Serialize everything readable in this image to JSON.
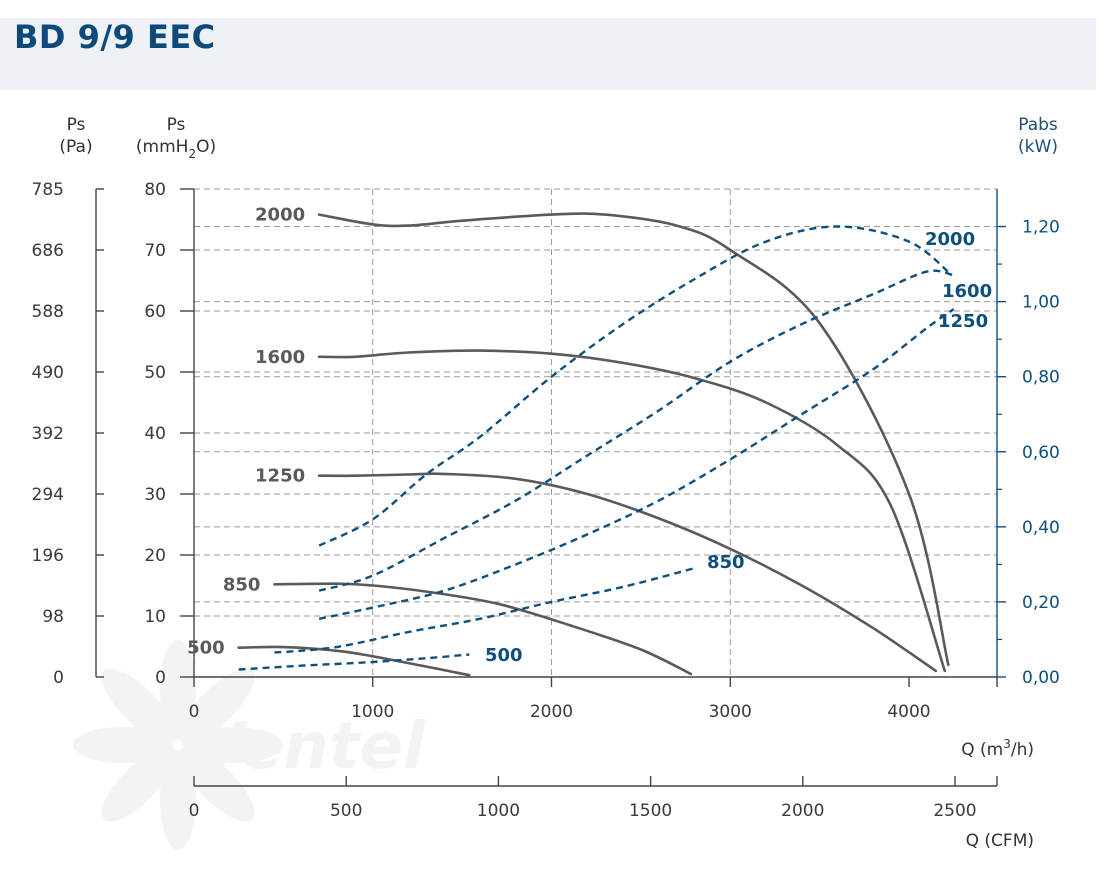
{
  "title": "BD 9/9 EEC",
  "watermark": "Ventel",
  "chart_data": {
    "type": "line",
    "axes": {
      "ps_pa": {
        "label": "Ps",
        "unit": "(Pa)",
        "ticks": [
          "785",
          "686",
          "588",
          "490",
          "392",
          "294",
          "196",
          "98",
          "0"
        ]
      },
      "ps_mm": {
        "label": "Ps",
        "unit_main": "(mmH",
        "unit_sub": "2",
        "unit_end": "O)",
        "ticks": [
          "80",
          "70",
          "60",
          "50",
          "40",
          "30",
          "20",
          "10",
          "0"
        ],
        "range": [
          0,
          80
        ]
      },
      "pabs": {
        "label": "Pabs",
        "unit": "(kW)",
        "ticks": [
          "1,20",
          "1,00",
          "0,80",
          "0,60",
          "0,40",
          "0,20",
          "0,00"
        ],
        "range": [
          0,
          1.3
        ]
      },
      "q_m3h": {
        "label_main": "Q (m",
        "label_sup": "3",
        "label_end": "/h)",
        "ticks": [
          "0",
          "1000",
          "2000",
          "3000",
          "4000"
        ],
        "range": [
          0,
          4500
        ]
      },
      "q_cfm": {
        "label": "Q (CFM)",
        "ticks": [
          "0",
          "500",
          "1000",
          "1500",
          "2000",
          "2500"
        ],
        "range": [
          0,
          2650
        ]
      }
    },
    "grid": true,
    "pressure_series": [
      {
        "name": "2000",
        "points": [
          [
            700,
            75.8
          ],
          [
            1000,
            74.2
          ],
          [
            1200,
            74
          ],
          [
            1500,
            74.8
          ],
          [
            2000,
            75.8
          ],
          [
            2300,
            75.8
          ],
          [
            2700,
            74
          ],
          [
            3000,
            70
          ],
          [
            3500,
            58
          ],
          [
            4000,
            30
          ],
          [
            4220,
            2
          ]
        ]
      },
      {
        "name": "1600",
        "points": [
          [
            700,
            52.5
          ],
          [
            900,
            52.5
          ],
          [
            1200,
            53.2
          ],
          [
            1600,
            53.5
          ],
          [
            2000,
            53
          ],
          [
            2400,
            51.5
          ],
          [
            2800,
            49
          ],
          [
            3200,
            45
          ],
          [
            3600,
            38
          ],
          [
            3900,
            28
          ],
          [
            4200,
            1
          ]
        ]
      },
      {
        "name": "1250",
        "points": [
          [
            700,
            33
          ],
          [
            900,
            33
          ],
          [
            1200,
            33.2
          ],
          [
            1400,
            33.3
          ],
          [
            1800,
            32.5
          ],
          [
            2200,
            30
          ],
          [
            2600,
            26
          ],
          [
            3000,
            21
          ],
          [
            3400,
            15
          ],
          [
            3800,
            8
          ],
          [
            4150,
            1
          ]
        ]
      },
      {
        "name": "850",
        "points": [
          [
            450,
            15.2
          ],
          [
            800,
            15.3
          ],
          [
            1000,
            15
          ],
          [
            1300,
            14
          ],
          [
            1700,
            12
          ],
          [
            2100,
            8.5
          ],
          [
            2500,
            4.5
          ],
          [
            2780,
            0.5
          ]
        ]
      },
      {
        "name": "500",
        "points": [
          [
            250,
            4.8
          ],
          [
            500,
            4.9
          ],
          [
            800,
            4.3
          ],
          [
            1000,
            3.4
          ],
          [
            1300,
            1.7
          ],
          [
            1540,
            0.3
          ]
        ]
      }
    ],
    "power_series": [
      {
        "name": "2000",
        "points": [
          [
            700,
            0.35
          ],
          [
            1000,
            0.42
          ],
          [
            1300,
            0.54
          ],
          [
            1600,
            0.64
          ],
          [
            2000,
            0.8
          ],
          [
            2400,
            0.94
          ],
          [
            2800,
            1.06
          ],
          [
            3200,
            1.16
          ],
          [
            3600,
            1.2
          ],
          [
            4000,
            1.16
          ],
          [
            4240,
            1.07
          ]
        ]
      },
      {
        "name": "1600",
        "points": [
          [
            700,
            0.23
          ],
          [
            1000,
            0.27
          ],
          [
            1400,
            0.37
          ],
          [
            1800,
            0.47
          ],
          [
            2200,
            0.59
          ],
          [
            2600,
            0.71
          ],
          [
            3000,
            0.84
          ],
          [
            3400,
            0.94
          ],
          [
            3800,
            1.02
          ],
          [
            4100,
            1.08
          ],
          [
            4250,
            1.07
          ]
        ]
      },
      {
        "name": "1250",
        "points": [
          [
            700,
            0.155
          ],
          [
            1000,
            0.185
          ],
          [
            1400,
            0.23
          ],
          [
            1800,
            0.3
          ],
          [
            2200,
            0.38
          ],
          [
            2600,
            0.47
          ],
          [
            3000,
            0.58
          ],
          [
            3400,
            0.7
          ],
          [
            3800,
            0.82
          ],
          [
            4100,
            0.93
          ],
          [
            4250,
            0.98
          ]
        ]
      },
      {
        "name": "850",
        "points": [
          [
            450,
            0.065
          ],
          [
            800,
            0.08
          ],
          [
            1200,
            0.12
          ],
          [
            1600,
            0.155
          ],
          [
            2000,
            0.2
          ],
          [
            2400,
            0.24
          ],
          [
            2800,
            0.29
          ]
        ]
      },
      {
        "name": "500",
        "points": [
          [
            250,
            0.02
          ],
          [
            600,
            0.03
          ],
          [
            1000,
            0.04
          ],
          [
            1300,
            0.05
          ],
          [
            1540,
            0.06
          ]
        ]
      }
    ],
    "colors": {
      "pressure": "#5a5a5e",
      "power": "#0e4f7d",
      "grid": "#9a9a9a"
    }
  }
}
